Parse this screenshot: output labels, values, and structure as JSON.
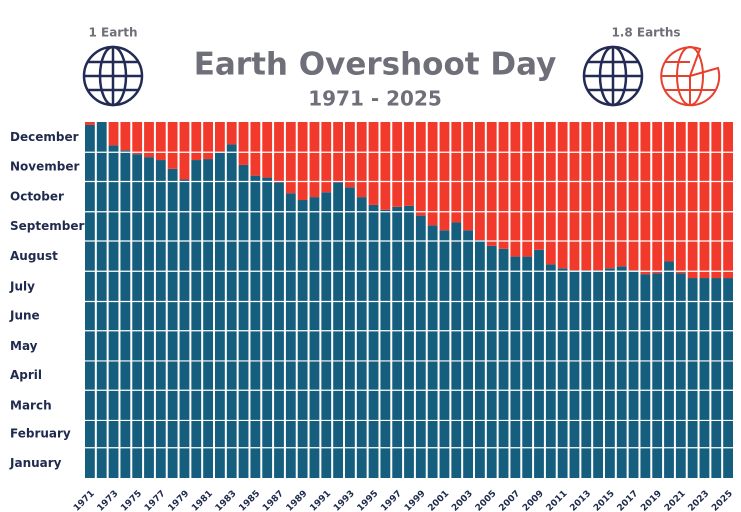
{
  "chart_data": {
    "type": "stacked_bar",
    "title": "Earth Overshoot Day",
    "subtitle": "1971 - 2025",
    "annotations": [
      "1 Earth",
      "1.8 Earths"
    ],
    "categories": [
      "1971",
      null,
      "1973",
      null,
      "1975",
      null,
      "1977",
      null,
      "1979",
      null,
      "1981",
      null,
      "1983",
      null,
      "1985",
      null,
      "1987",
      null,
      "1989",
      null,
      "1991",
      null,
      "1993",
      null,
      "1995",
      null,
      "1997",
      null,
      "1999",
      null,
      "2001",
      null,
      "2003",
      null,
      "2005",
      null,
      "2007",
      null,
      "2009",
      null,
      "2011",
      null,
      "2013",
      null,
      "2015",
      null,
      "2017",
      null,
      "2019",
      null,
      "2021",
      null,
      "2023",
      null,
      "2025"
    ],
    "series": [
      {
        "color": "#155e7e",
        "values": [
          362,
          365,
          341,
          336,
          332,
          329,
          326,
          317,
          306,
          326,
          327,
          334,
          342,
          321,
          310,
          308,
          303,
          292,
          285,
          288,
          293,
          303,
          298,
          288,
          280,
          275,
          278,
          279,
          269,
          259,
          254,
          262,
          254,
          244,
          238,
          235,
          227,
          227,
          234,
          219,
          215,
          213,
          213,
          213,
          215,
          217,
          213,
          209,
          210,
          222,
          210,
          205,
          205,
          205,
          205
        ]
      },
      {
        "color": "#f23a2c",
        "values": [
          3,
          0,
          24,
          29,
          33,
          36,
          39,
          48,
          59,
          39,
          38,
          31,
          23,
          44,
          55,
          57,
          62,
          73,
          80,
          77,
          72,
          62,
          67,
          77,
          85,
          90,
          87,
          86,
          96,
          106,
          111,
          103,
          111,
          121,
          127,
          130,
          138,
          138,
          131,
          146,
          150,
          152,
          152,
          152,
          150,
          148,
          152,
          156,
          155,
          143,
          155,
          160,
          160,
          160,
          160
        ]
      }
    ],
    "ylim": [
      0,
      365
    ],
    "yticks": [
      {
        "value": 15,
        "label": "January"
      },
      {
        "value": 45,
        "label": "February"
      },
      {
        "value": 74,
        "label": "March"
      },
      {
        "value": 105,
        "label": "April"
      },
      {
        "value": 135,
        "label": "May"
      },
      {
        "value": 166,
        "label": "June"
      },
      {
        "value": 196,
        "label": "July"
      },
      {
        "value": 227,
        "label": "August"
      },
      {
        "value": 258,
        "label": "September"
      },
      {
        "value": 288,
        "label": "October"
      },
      {
        "value": 319,
        "label": "November"
      },
      {
        "value": 349,
        "label": "December"
      }
    ],
    "ygrid": [
      31,
      59,
      90,
      120,
      151,
      181,
      212,
      243,
      273,
      304,
      334
    ]
  }
}
